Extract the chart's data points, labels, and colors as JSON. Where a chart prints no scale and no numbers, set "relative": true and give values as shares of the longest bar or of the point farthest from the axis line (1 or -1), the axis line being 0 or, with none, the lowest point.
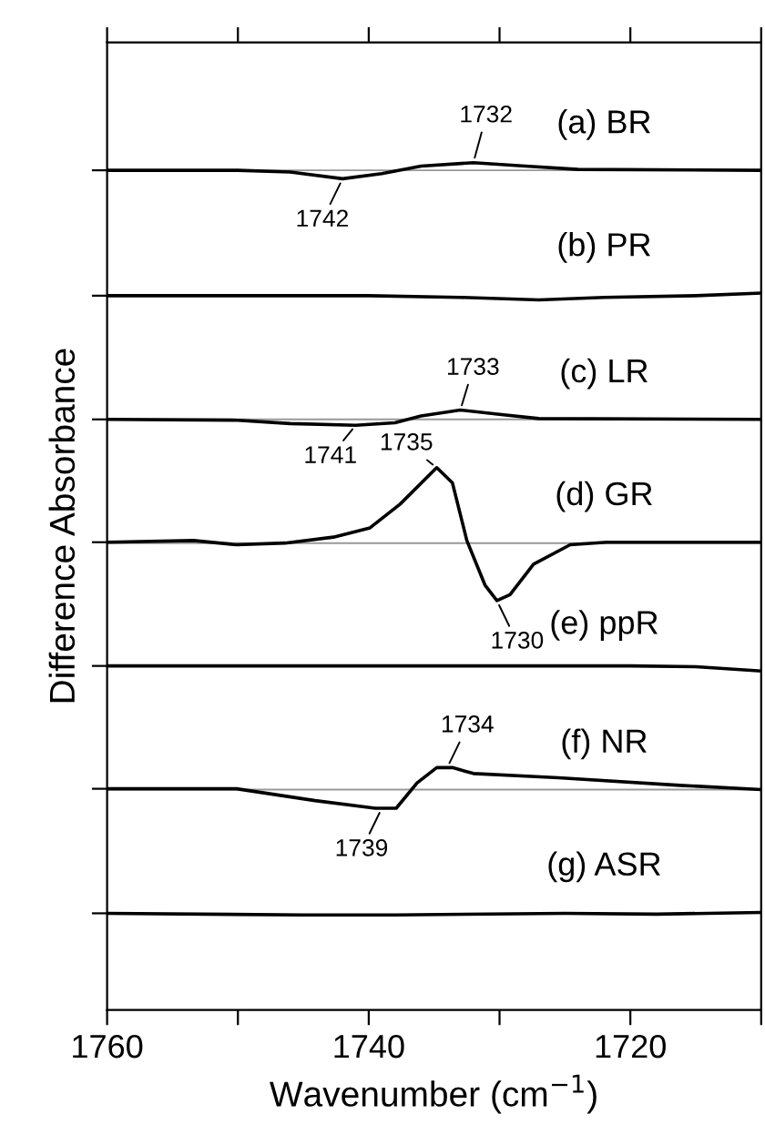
{
  "chart_data": {
    "type": "line",
    "relative": true,
    "xlabel": "Wavenumber (cm$^{−1}$)",
    "ylabel": "Difference Absorbance",
    "xlim": [
      1760,
      1710
    ],
    "xticks": [
      1760,
      {
        "value": 1750,
        "label": null
      },
      1740,
      {
        "value": 1730,
        "label": null
      },
      1720,
      {
        "value": 1710,
        "label": null
      }
    ],
    "tick_labels": "x",
    "grid": false,
    "legend": "right",
    "marker": "none",
    "line_style": "solid",
    "series": [
      {
        "name": "(a) BR",
        "color": "#000000",
        "x": [
          1760,
          1750,
          1746,
          1742,
          1739,
          1736,
          1732,
          1728,
          1724,
          1710
        ],
        "values": [
          0.991,
          0.991,
          0.989,
          0.981,
          0.987,
          0.996,
          1.0,
          0.996,
          0.992,
          0.991
        ]
      },
      {
        "name": "(b) PR",
        "color": "#000000",
        "x": [
          1760,
          1740,
          1733,
          1727,
          1722,
          1715,
          1710
        ],
        "values": [
          0.843,
          0.843,
          0.841,
          0.838,
          0.841,
          0.843,
          0.846
        ]
      },
      {
        "name": "(c) LR",
        "color": "#000000",
        "x": [
          1760,
          1750,
          1746,
          1741,
          1738,
          1736,
          1733,
          1730,
          1727,
          1710
        ],
        "values": [
          0.697,
          0.696,
          0.692,
          0.69,
          0.693,
          0.701,
          0.708,
          0.703,
          0.698,
          0.697
        ]
      },
      {
        "name": "(d) GR",
        "color": "#000000",
        "x": [
          1760,
          1753.4,
          1750.1,
          1746.4,
          1742.7,
          1739.9,
          1737.6,
          1734.8,
          1733.6,
          1732.5,
          1731.1,
          1730.2,
          1729.2,
          1727.4,
          1724.6,
          1721.8,
          1710
        ],
        "values": [
          0.552,
          0.554,
          0.549,
          0.551,
          0.558,
          0.569,
          0.597,
          0.64,
          0.622,
          0.554,
          0.501,
          0.483,
          0.49,
          0.526,
          0.549,
          0.552,
          0.552
        ]
      },
      {
        "name": "(e) ppR",
        "color": "#000000",
        "x": [
          1760,
          1720,
          1715,
          1710
        ],
        "values": [
          0.406,
          0.406,
          0.405,
          0.4
        ]
      },
      {
        "name": "(f) NR",
        "color": "#000000",
        "x": [
          1760,
          1750.1,
          1744.1,
          1739.5,
          1737.9,
          1736.3,
          1734.8,
          1733.6,
          1732.0,
          1725.5,
          1716.2,
          1710
        ],
        "values": [
          0.261,
          0.261,
          0.247,
          0.238,
          0.238,
          0.268,
          0.286,
          0.286,
          0.279,
          0.274,
          0.265,
          0.26
        ]
      },
      {
        "name": "(g) ASR",
        "color": "#000000",
        "x": [
          1760,
          1745,
          1738,
          1725,
          1718,
          1710
        ],
        "values": [
          0.114,
          0.112,
          0.112,
          0.114,
          0.113,
          0.115
        ]
      }
    ],
    "ref_lines": [
      {
        "axis": "y",
        "value": 0.991,
        "color": "#999999"
      },
      {
        "axis": "y",
        "value": 0.697,
        "color": "#999999"
      },
      {
        "axis": "y",
        "value": 0.551,
        "color": "#999999"
      },
      {
        "axis": "y",
        "value": 0.26,
        "color": "#999999"
      }
    ],
    "annotations": [
      {
        "text": "1732",
        "x": 1732,
        "y": 1.0
      },
      {
        "text": "1742",
        "x": 1742,
        "y": 0.981
      },
      {
        "text": "1733",
        "x": 1733,
        "y": 0.708
      },
      {
        "text": "1741",
        "x": 1741,
        "y": 0.69
      },
      {
        "text": "1735",
        "x": 1734.8,
        "y": 0.64
      },
      {
        "text": "1730",
        "x": 1730.2,
        "y": 0.483
      },
      {
        "text": "1734",
        "x": 1734,
        "y": 0.286
      },
      {
        "text": "1739",
        "x": 1739,
        "y": 0.238
      }
    ]
  }
}
